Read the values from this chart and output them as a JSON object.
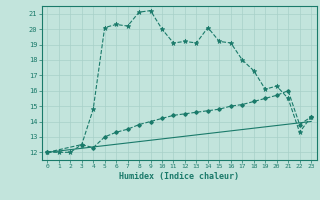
{
  "xlabel": "Humidex (Indice chaleur)",
  "xlim": [
    -0.5,
    23.5
  ],
  "ylim": [
    11.5,
    21.5
  ],
  "xticks": [
    0,
    1,
    2,
    3,
    4,
    5,
    6,
    7,
    8,
    9,
    10,
    11,
    12,
    13,
    14,
    15,
    16,
    17,
    18,
    19,
    20,
    21,
    22,
    23
  ],
  "yticks": [
    12,
    13,
    14,
    15,
    16,
    17,
    18,
    19,
    20,
    21
  ],
  "bg_color": "#c2e4dc",
  "line_color": "#1a7a6a",
  "grid_color": "#a8d0c8",
  "curve1_x": [
    0,
    1,
    2,
    3,
    4,
    5,
    6,
    7,
    8,
    9,
    10,
    11,
    12,
    13,
    14,
    15,
    16,
    17,
    18,
    19,
    20,
    21,
    22,
    23
  ],
  "curve1_y": [
    12.0,
    12.0,
    12.0,
    12.5,
    14.8,
    20.1,
    20.3,
    20.2,
    21.1,
    21.2,
    20.0,
    19.1,
    19.2,
    19.1,
    20.1,
    19.2,
    19.1,
    18.0,
    17.3,
    16.1,
    16.3,
    15.5,
    13.3,
    14.3
  ],
  "curve2_x": [
    0,
    3,
    4,
    5,
    6,
    7,
    8,
    9,
    10,
    11,
    12,
    13,
    14,
    15,
    16,
    17,
    18,
    19,
    20,
    21,
    22,
    23
  ],
  "curve2_y": [
    12.0,
    12.5,
    12.3,
    13.0,
    13.3,
    13.5,
    13.8,
    14.0,
    14.2,
    14.4,
    14.5,
    14.6,
    14.7,
    14.8,
    15.0,
    15.1,
    15.3,
    15.5,
    15.7,
    16.0,
    13.8,
    14.3
  ],
  "curve3_x": [
    0,
    23
  ],
  "curve3_y": [
    12.0,
    14.0
  ]
}
